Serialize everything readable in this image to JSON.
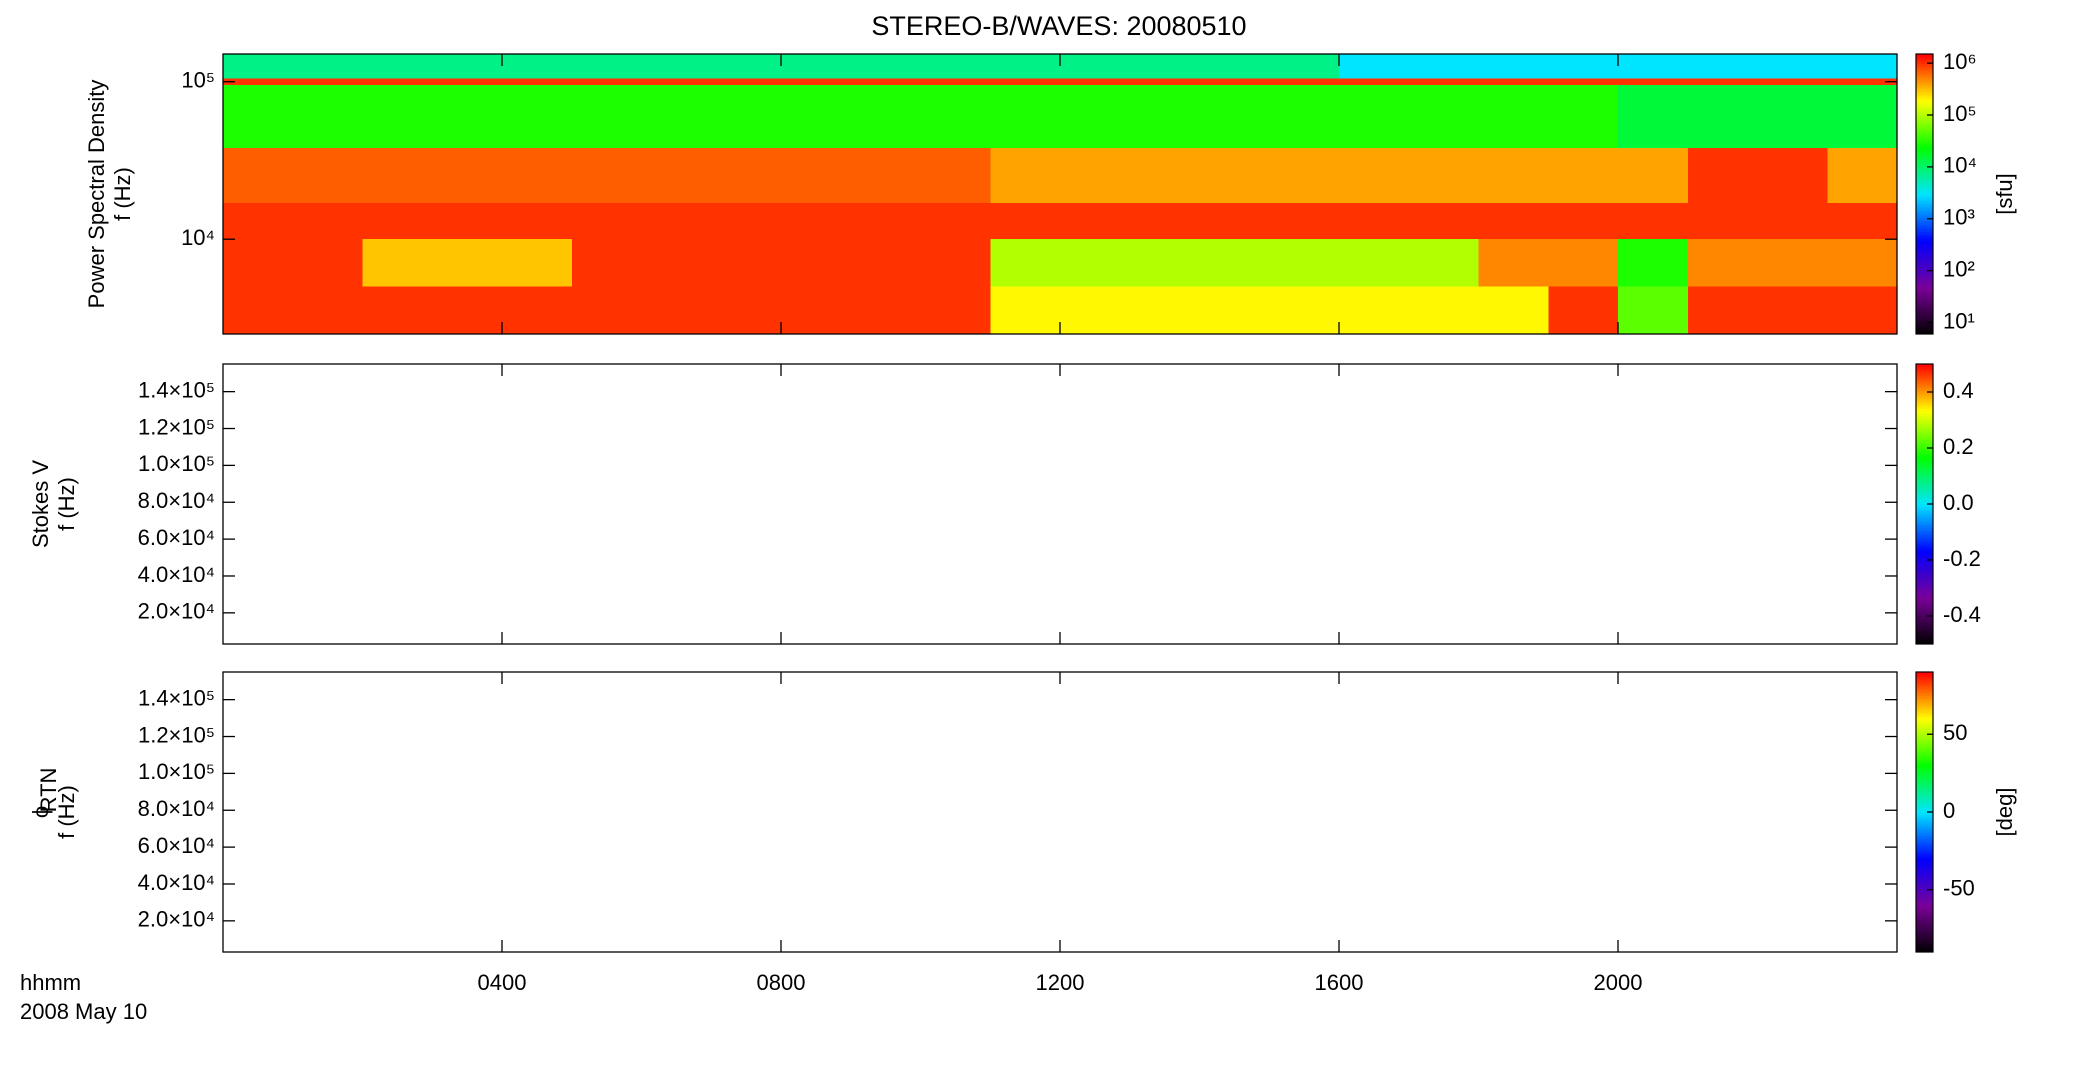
{
  "title": "STEREO-B/WAVES: 20080510",
  "colormap": [
    "#000000",
    "#7a0099",
    "#0000ff",
    "#00e5ff",
    "#00ff00",
    "#ffff00",
    "#ff0000"
  ],
  "time_axis": {
    "xlim": [
      0,
      24
    ],
    "xticks": [
      {
        "value": 4,
        "label": "0400"
      },
      {
        "value": 8,
        "label": "0800"
      },
      {
        "value": 12,
        "label": "1200"
      },
      {
        "value": 16,
        "label": "1600"
      },
      {
        "value": 20,
        "label": "2000"
      }
    ],
    "label": "hhmm",
    "date": "2008 May 10"
  },
  "chart_data": [
    {
      "type": "heatmap",
      "ylabel": [
        "Power Spectral Density",
        "f (Hz)"
      ],
      "ylog": true,
      "ylim": [
        2500,
        150000
      ],
      "yticks": [
        {
          "value": 10000,
          "label": "10⁴"
        },
        {
          "value": 100000,
          "label": "10⁵"
        }
      ],
      "x_edges": [
        0,
        1,
        2,
        3,
        4,
        5,
        6,
        7,
        8,
        9,
        10,
        11,
        12,
        13,
        14,
        15,
        16,
        17,
        18,
        19,
        20,
        21,
        22,
        23,
        24
      ],
      "y_edges": [
        2500,
        5000,
        10000,
        17000,
        38000,
        95000,
        105000,
        150000
      ],
      "z": [
        [
          1000000,
          1000000,
          1000000,
          1000000,
          1000000,
          1000000,
          1000000,
          1000000,
          1000000,
          1000000,
          1000000,
          200000,
          200000,
          200000,
          200000,
          200000,
          200000,
          200000,
          200000,
          1000000,
          50000,
          1000000,
          1000000,
          1000000
        ],
        [
          1000000,
          1000000,
          300000,
          300000,
          300000,
          1000000,
          1000000,
          1000000,
          1000000,
          1000000,
          1000000,
          100000,
          100000,
          100000,
          100000,
          100000,
          100000,
          100000,
          500000,
          500000,
          30000,
          500000,
          500000,
          500000
        ],
        [
          1000000,
          1000000,
          1000000,
          1000000,
          1000000,
          1000000,
          1000000,
          1000000,
          1000000,
          1000000,
          1000000,
          1000000,
          1000000,
          1000000,
          1000000,
          1000000,
          1000000,
          1000000,
          1000000,
          1000000,
          1000000,
          1000000,
          1000000,
          1000000
        ],
        [
          700000,
          700000,
          700000,
          700000,
          700000,
          700000,
          700000,
          700000,
          700000,
          700000,
          700000,
          400000,
          400000,
          400000,
          400000,
          400000,
          400000,
          400000,
          400000,
          400000,
          400000,
          1000000,
          1000000,
          400000
        ],
        [
          30000,
          30000,
          30000,
          30000,
          30000,
          30000,
          30000,
          30000,
          30000,
          30000,
          30000,
          30000,
          30000,
          30000,
          30000,
          30000,
          30000,
          30000,
          30000,
          30000,
          15000,
          15000,
          15000,
          15000
        ],
        [
          1000000,
          1000000,
          1000000,
          1000000,
          1000000,
          1000000,
          1000000,
          1000000,
          1000000,
          1000000,
          1000000,
          1000000,
          1000000,
          1000000,
          1000000,
          1000000,
          1000000,
          1000000,
          1000000,
          1000000,
          1000000,
          1000000,
          1000000,
          1000000
        ],
        [
          8000,
          8000,
          8000,
          8000,
          8000,
          8000,
          8000,
          8000,
          8000,
          8000,
          8000,
          8000,
          8000,
          8000,
          8000,
          8000,
          3000,
          3000,
          3000,
          3000,
          3000,
          3000,
          3000,
          3000
        ]
      ],
      "colorbar": {
        "log": true,
        "clim": [
          6,
          1500000
        ],
        "ticks": [
          {
            "value": 10,
            "label": "10¹"
          },
          {
            "value": 100,
            "label": "10²"
          },
          {
            "value": 1000,
            "label": "10³"
          },
          {
            "value": 10000,
            "label": "10⁴"
          },
          {
            "value": 100000,
            "label": "10⁵"
          },
          {
            "value": 1000000,
            "label": "10⁶"
          }
        ],
        "label": "[sfu]"
      }
    },
    {
      "type": "heatmap",
      "ylabel": [
        "Stokes V",
        "f (Hz)"
      ],
      "ylog": false,
      "ylim": [
        3100,
        155000
      ],
      "yticks": [
        {
          "value": 20000,
          "label": "2.0×10⁴"
        },
        {
          "value": 40000,
          "label": "4.0×10⁴"
        },
        {
          "value": 60000,
          "label": "6.0×10⁴"
        },
        {
          "value": 80000,
          "label": "8.0×10⁴"
        },
        {
          "value": 100000,
          "label": "1.0×10⁵"
        },
        {
          "value": 120000,
          "label": "1.2×10⁵"
        },
        {
          "value": 140000,
          "label": "1.4×10⁵"
        }
      ],
      "colorbar": {
        "log": false,
        "clim": [
          -0.5,
          0.5
        ],
        "ticks": [
          -0.4,
          -0.2,
          {
            "value": 0,
            "label": "0.0"
          },
          0.2,
          0.4
        ]
      }
    },
    {
      "type": "heatmap",
      "ylabel": [
        "ϕ",
        "f (Hz)"
      ],
      "ylabel_sub": "RTN",
      "ylog": false,
      "ylim": [
        3100,
        155000
      ],
      "yticks": [
        {
          "value": 20000,
          "label": "2.0×10⁴"
        },
        {
          "value": 40000,
          "label": "4.0×10⁴"
        },
        {
          "value": 60000,
          "label": "6.0×10⁴"
        },
        {
          "value": 80000,
          "label": "8.0×10⁴"
        },
        {
          "value": 100000,
          "label": "1.0×10⁵"
        },
        {
          "value": 120000,
          "label": "1.2×10⁵"
        },
        {
          "value": 140000,
          "label": "1.4×10⁵"
        }
      ],
      "colorbar": {
        "log": false,
        "clim": [
          -90,
          90
        ],
        "ticks": [
          -50,
          0,
          50
        ],
        "label": "[deg]"
      }
    }
  ]
}
